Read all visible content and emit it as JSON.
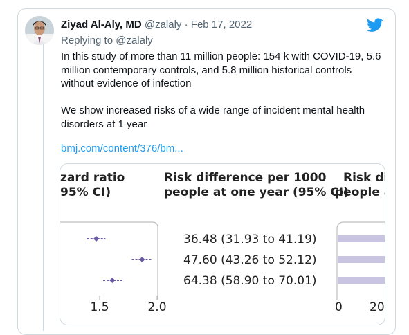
{
  "tweet": {
    "author_name": "Ziyad Al-Aly, MD",
    "author_handle": "@zalaly",
    "separator": "·",
    "date": "Feb 17, 2022",
    "replying_prefix": "Replying to",
    "replying_handle": "@zalaly",
    "paragraph1": "In this study of more than 11 million people: 154 k with COVID-19, 5.6 million contemporary controls, and 5.8 million historical controls without evidence of infection",
    "paragraph2": "We show increased risks of a wide range of incident mental health disorders at 1 year",
    "link": "bmj.com/content/376/bm..."
  },
  "icons": {
    "logo": "twitter-bird-icon",
    "avatar": "avatar"
  },
  "colors": {
    "link": "#1d9bf0",
    "marker": "#6b5aa6",
    "bar": "#c9c4e2",
    "text": "#0f1419",
    "muted": "#536471"
  },
  "figure": {
    "col1_header_line1": "zard ratio",
    "col1_header_line2": "95% CI)",
    "col2_header_line1": "Risk difference per 1000",
    "col2_header_line2": "people at one year (95% CI)",
    "col3_header_line1": "Risk di",
    "col3_header_line2": "people a",
    "rows": [
      {
        "value": "36.48 (31.93 to 41.19)",
        "hr": 1.47,
        "lo": 1.39,
        "hi": 1.55,
        "bar": 1
      },
      {
        "value": "47.60 (43.26 to 52.12)",
        "hr": 1.87,
        "lo": 1.78,
        "hi": 1.96,
        "bar": 1
      },
      {
        "value": "64.38 (58.90 to 70.01)",
        "hr": 1.61,
        "lo": 1.53,
        "hi": 1.7,
        "bar": 1
      }
    ],
    "axis1_ticks": [
      "1.5",
      "2.0"
    ],
    "axis1_tick_values": [
      1.5,
      2.0
    ],
    "axis3_ticks": [
      "0",
      "20"
    ]
  }
}
